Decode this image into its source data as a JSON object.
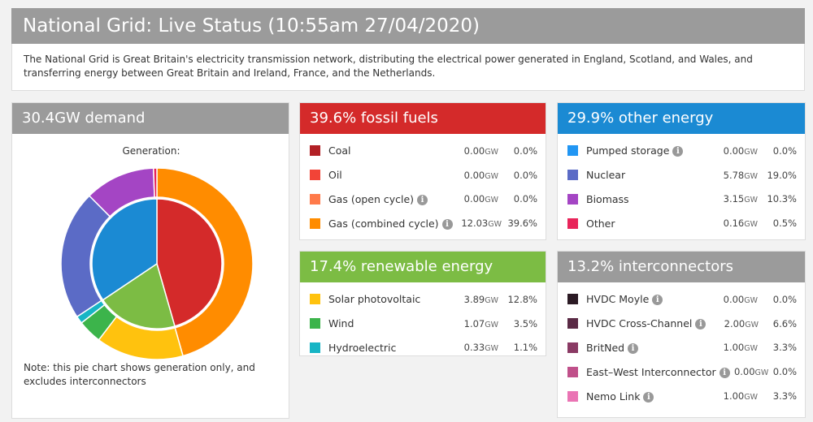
{
  "header": {
    "title": "National Grid: Live Status (10:55am 27/04/2020)"
  },
  "description": "The National Grid is Great Britain's electricity transmission network, distributing the electrical power generated in England, Scotland, and Wales, and transferring energy between Great Britain and Ireland, France, and the Netherlands.",
  "demand": {
    "title": "30.4GW demand",
    "generation_label": "Generation:",
    "note": "Note: this pie chart shows generation only, and excludes interconnectors",
    "inner_ring": [
      {
        "group": "fossil fuels",
        "pct": 39.6,
        "color": "#d42a2a"
      },
      {
        "group": "renewable energy",
        "pct": 17.4,
        "color": "#7cbc44"
      },
      {
        "group": "other energy",
        "pct": 29.9,
        "color": "#1b8ad3"
      }
    ],
    "outer_ring": [
      {
        "name": "Gas (combined cycle)",
        "pct": 39.6,
        "color": "#ff8c00"
      },
      {
        "name": "Solar photovoltaic",
        "pct": 12.8,
        "color": "#ffc20e"
      },
      {
        "name": "Wind",
        "pct": 3.5,
        "color": "#3cb44b"
      },
      {
        "name": "Hydroelectric",
        "pct": 1.1,
        "color": "#17b5c5"
      },
      {
        "name": "Nuclear",
        "pct": 19.0,
        "color": "#5b6bc6"
      },
      {
        "name": "Biomass",
        "pct": 10.3,
        "color": "#a445c4"
      },
      {
        "name": "Other",
        "pct": 0.5,
        "color": "#e8245a"
      }
    ]
  },
  "fossil": {
    "title": "39.6% fossil fuels",
    "rows": [
      {
        "name": "Coal",
        "gw": "0.00",
        "unit": "GW",
        "pct": "0.0%",
        "color": "#b22025",
        "info": false
      },
      {
        "name": "Oil",
        "gw": "0.00",
        "unit": "GW",
        "pct": "0.0%",
        "color": "#f24437",
        "info": false
      },
      {
        "name": "Gas (open cycle)",
        "gw": "0.00",
        "unit": "GW",
        "pct": "0.0%",
        "color": "#ff7a4a",
        "info": true
      },
      {
        "name": "Gas (combined cycle)",
        "gw": "12.03",
        "unit": "GW",
        "pct": "39.6%",
        "color": "#ff8c00",
        "info": true
      }
    ]
  },
  "other": {
    "title": "29.9% other energy",
    "rows": [
      {
        "name": "Pumped storage",
        "gw": "0.00",
        "unit": "GW",
        "pct": "0.0%",
        "color": "#2196f3",
        "info": true
      },
      {
        "name": "Nuclear",
        "gw": "5.78",
        "unit": "GW",
        "pct": "19.0%",
        "color": "#5b6bc6",
        "info": false
      },
      {
        "name": "Biomass",
        "gw": "3.15",
        "unit": "GW",
        "pct": "10.3%",
        "color": "#a445c4",
        "info": false
      },
      {
        "name": "Other",
        "gw": "0.16",
        "unit": "GW",
        "pct": "0.5%",
        "color": "#e8245a",
        "info": false
      }
    ]
  },
  "renewable": {
    "title": "17.4% renewable energy",
    "rows": [
      {
        "name": "Solar photovoltaic",
        "gw": "3.89",
        "unit": "GW",
        "pct": "12.8%",
        "color": "#ffc20e",
        "info": false
      },
      {
        "name": "Wind",
        "gw": "1.07",
        "unit": "GW",
        "pct": "3.5%",
        "color": "#3cb44b",
        "info": false
      },
      {
        "name": "Hydroelectric",
        "gw": "0.33",
        "unit": "GW",
        "pct": "1.1%",
        "color": "#17b5c5",
        "info": false
      }
    ]
  },
  "interconnectors": {
    "title": "13.2% interconnectors",
    "rows": [
      {
        "name": "HVDC Moyle",
        "gw": "0.00",
        "unit": "GW",
        "pct": "0.0%",
        "color": "#2b1a24",
        "info": true
      },
      {
        "name": "HVDC Cross-Channel",
        "gw": "2.00",
        "unit": "GW",
        "pct": "6.6%",
        "color": "#5a2a45",
        "info": true
      },
      {
        "name": "BritNed",
        "gw": "1.00",
        "unit": "GW",
        "pct": "3.3%",
        "color": "#8a3a64",
        "info": true
      },
      {
        "name": "East–West Interconnector",
        "gw": "0.00",
        "unit": "GW",
        "pct": "0.0%",
        "color": "#c0508a",
        "info": true
      },
      {
        "name": "Nemo Link",
        "gw": "1.00",
        "unit": "GW",
        "pct": "3.3%",
        "color": "#ea74b4",
        "info": true
      }
    ]
  }
}
